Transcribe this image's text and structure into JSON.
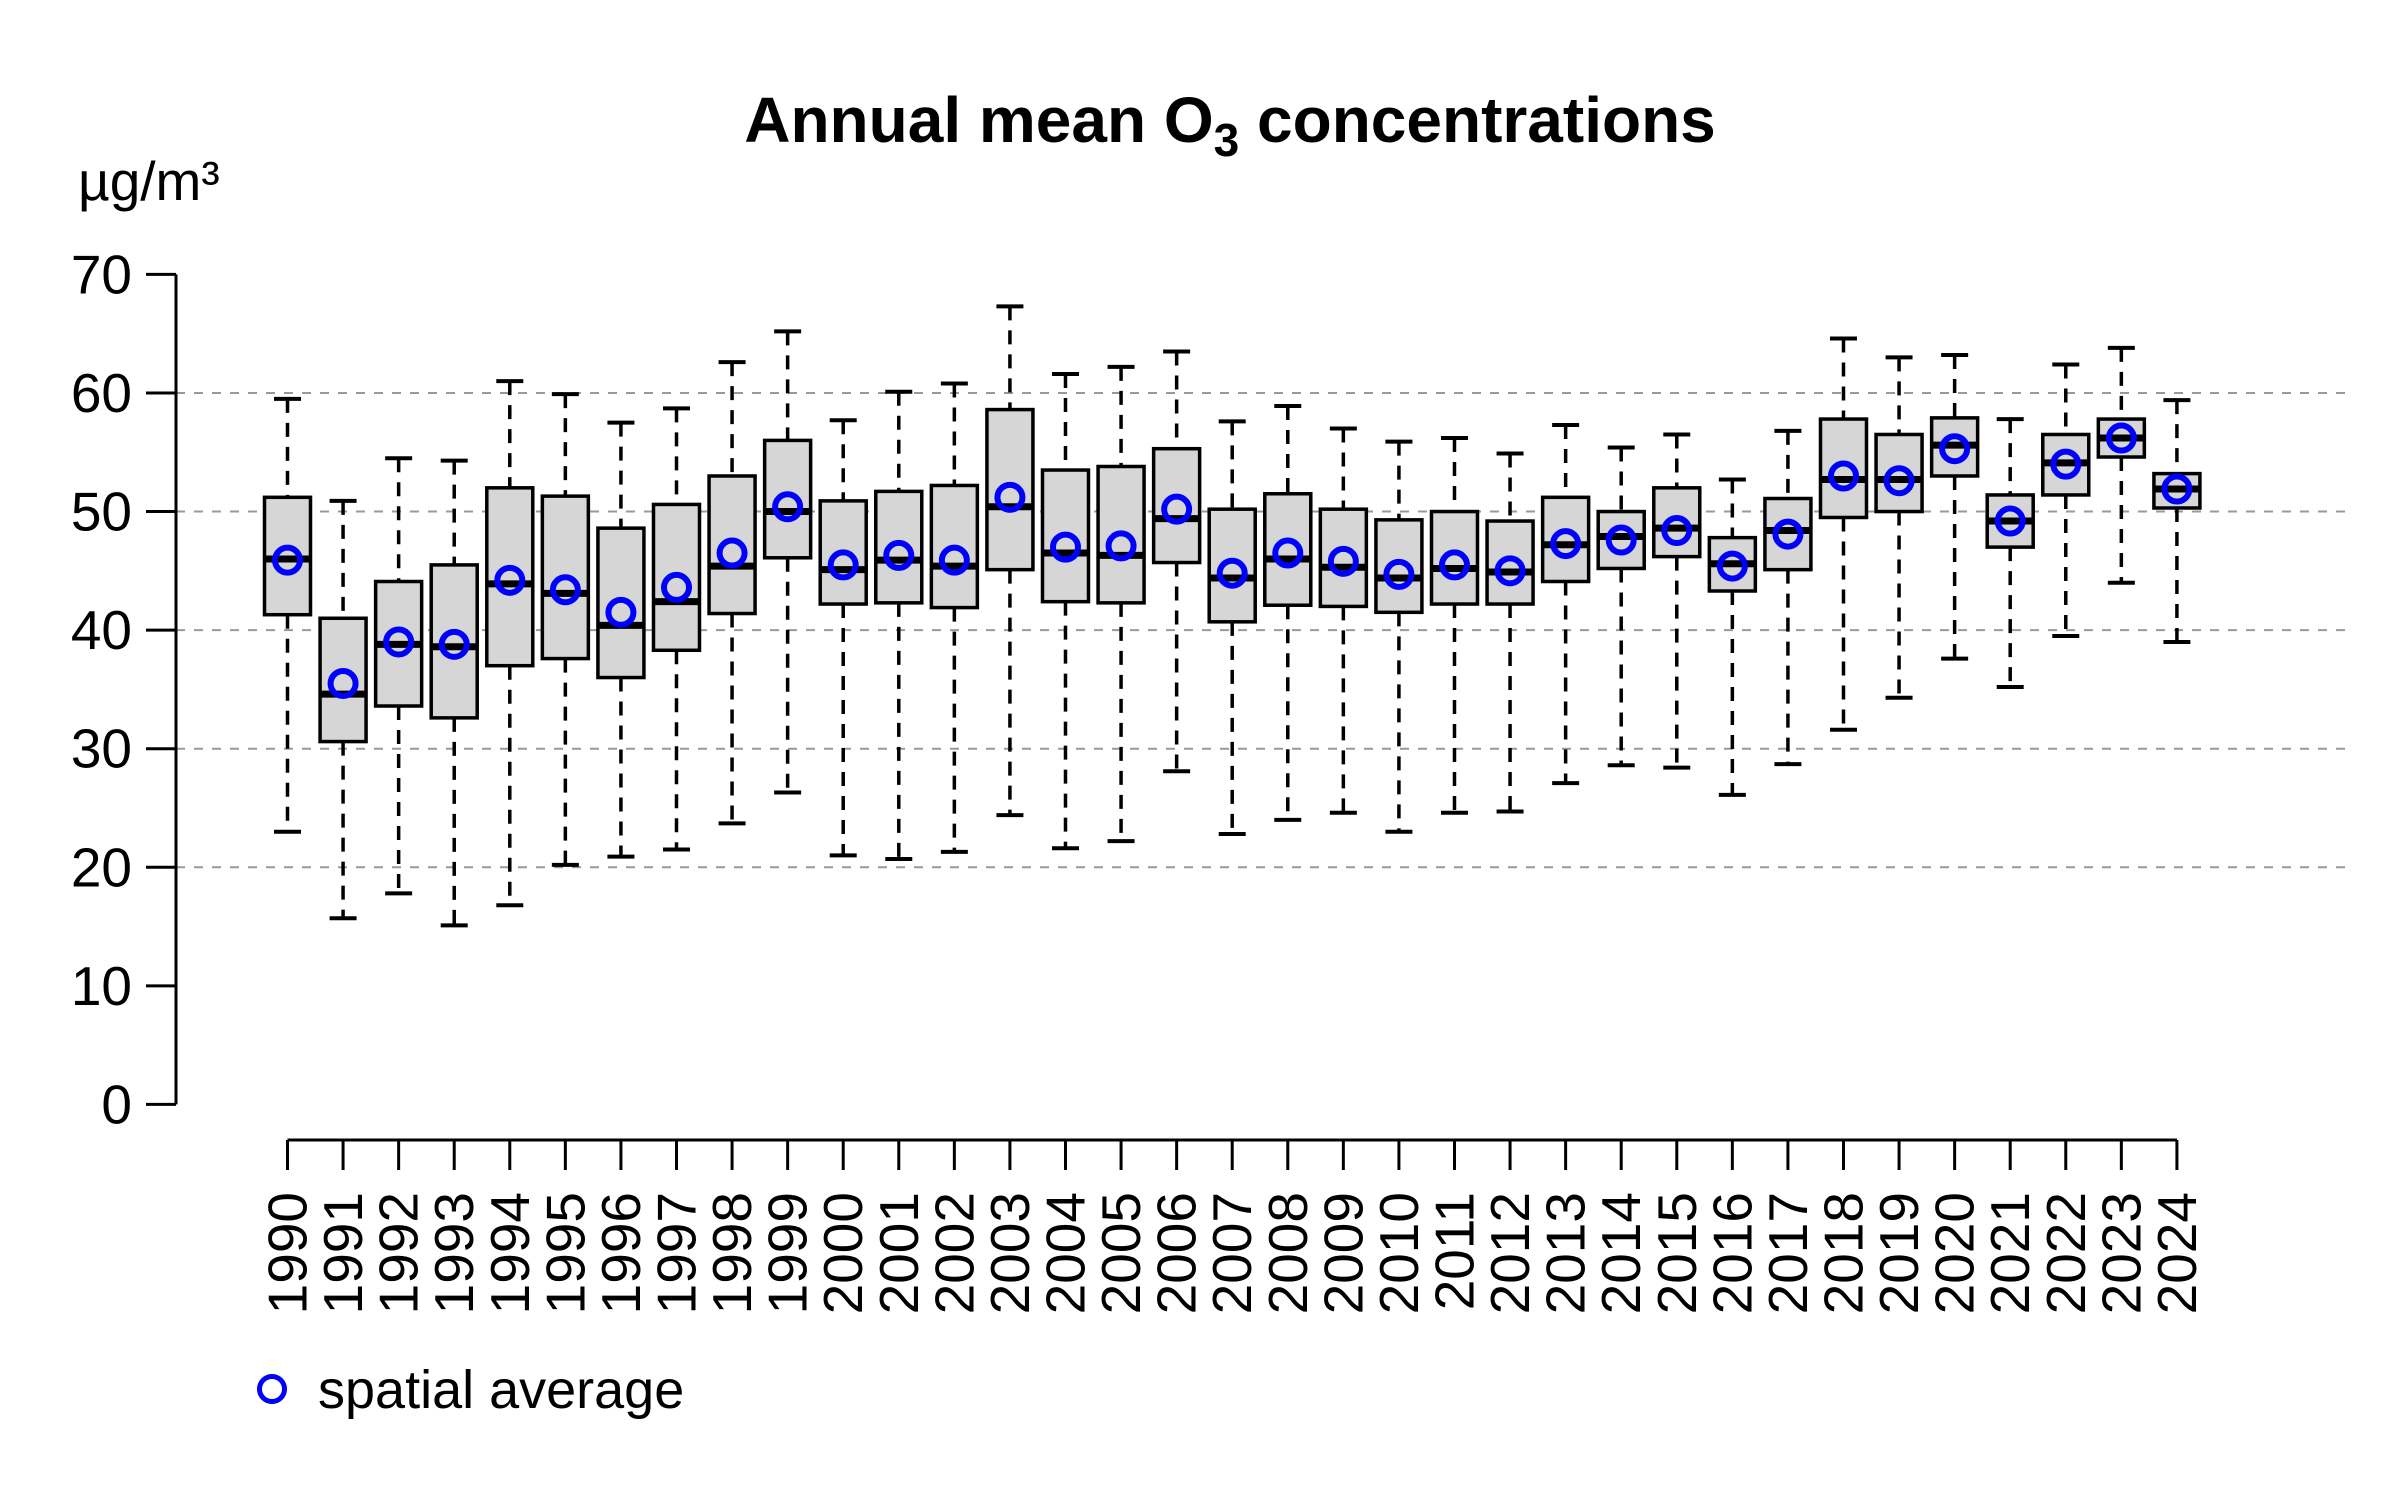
{
  "title": {
    "prefix": "Annual mean O",
    "subscript": "3",
    "suffix": " concentrations"
  },
  "y_axis": {
    "unit_label": "µg/m³",
    "tick_values": [
      0,
      10,
      20,
      30,
      40,
      50,
      60,
      70
    ],
    "tick_labels": [
      "0",
      "10",
      "20",
      "30",
      "40",
      "50",
      "60",
      "70"
    ],
    "gridline_values": [
      20,
      30,
      40,
      50,
      60
    ]
  },
  "legend": {
    "label": "spatial average",
    "marker": "open-circle-icon"
  },
  "colors": {
    "background": "#ffffff",
    "box_fill": "#d6d6d6",
    "box_stroke": "#000000",
    "median": "#000000",
    "whisker": "#000000",
    "average_marker": "#0000ff",
    "gridline": "#999999",
    "text": "#000000"
  },
  "chart_data": {
    "type": "boxplot",
    "title": "Annual mean O3 concentrations",
    "ylabel": "µg/m³",
    "ylim": [
      0,
      70
    ],
    "grid": "horizontal-dashed",
    "gridline_values": [
      20,
      30,
      40,
      50,
      60
    ],
    "legend_position": "bottom-left",
    "legend_entries": [
      "spatial average"
    ],
    "categories": [
      "1990",
      "1991",
      "1992",
      "1993",
      "1994",
      "1995",
      "1996",
      "1997",
      "1998",
      "1999",
      "2000",
      "2001",
      "2002",
      "2003",
      "2004",
      "2005",
      "2006",
      "2007",
      "2008",
      "2009",
      "2010",
      "2011",
      "2012",
      "2013",
      "2014",
      "2015",
      "2016",
      "2017",
      "2018",
      "2019",
      "2020",
      "2021",
      "2022",
      "2023",
      "2024"
    ],
    "boxes": [
      {
        "year": "1990",
        "low": 23.0,
        "q1": 41.3,
        "median": 46.0,
        "q3": 51.2,
        "high": 59.5,
        "average": 45.9
      },
      {
        "year": "1991",
        "low": 15.7,
        "q1": 30.6,
        "median": 34.6,
        "q3": 41.0,
        "high": 50.9,
        "average": 35.5
      },
      {
        "year": "1992",
        "low": 17.8,
        "q1": 33.6,
        "median": 38.8,
        "q3": 44.1,
        "high": 54.5,
        "average": 39.0
      },
      {
        "year": "1993",
        "low": 15.1,
        "q1": 32.6,
        "median": 38.6,
        "q3": 45.5,
        "high": 54.3,
        "average": 38.8
      },
      {
        "year": "1994",
        "low": 16.8,
        "q1": 37.0,
        "median": 43.9,
        "q3": 52.0,
        "high": 61.0,
        "average": 44.2
      },
      {
        "year": "1995",
        "low": 20.2,
        "q1": 37.6,
        "median": 43.1,
        "q3": 51.3,
        "high": 59.9,
        "average": 43.4
      },
      {
        "year": "1996",
        "low": 20.9,
        "q1": 36.0,
        "median": 40.4,
        "q3": 48.6,
        "high": 57.5,
        "average": 41.5
      },
      {
        "year": "1997",
        "low": 21.5,
        "q1": 38.3,
        "median": 42.4,
        "q3": 50.6,
        "high": 58.7,
        "average": 43.6
      },
      {
        "year": "1998",
        "low": 23.7,
        "q1": 41.4,
        "median": 45.4,
        "q3": 53.0,
        "high": 62.6,
        "average": 46.5
      },
      {
        "year": "1999",
        "low": 26.3,
        "q1": 46.1,
        "median": 50.0,
        "q3": 56.0,
        "high": 65.2,
        "average": 50.4
      },
      {
        "year": "2000",
        "low": 21.0,
        "q1": 42.2,
        "median": 45.1,
        "q3": 50.9,
        "high": 57.7,
        "average": 45.5
      },
      {
        "year": "2001",
        "low": 20.7,
        "q1": 42.3,
        "median": 45.9,
        "q3": 51.7,
        "high": 60.1,
        "average": 46.3
      },
      {
        "year": "2002",
        "low": 21.3,
        "q1": 41.9,
        "median": 45.4,
        "q3": 52.2,
        "high": 60.8,
        "average": 45.9
      },
      {
        "year": "2003",
        "low": 24.4,
        "q1": 45.1,
        "median": 50.4,
        "q3": 58.6,
        "high": 67.3,
        "average": 51.2
      },
      {
        "year": "2004",
        "low": 21.6,
        "q1": 42.4,
        "median": 46.5,
        "q3": 53.5,
        "high": 61.6,
        "average": 47.0
      },
      {
        "year": "2005",
        "low": 22.2,
        "q1": 42.3,
        "median": 46.3,
        "q3": 53.8,
        "high": 62.2,
        "average": 47.1
      },
      {
        "year": "2006",
        "low": 28.1,
        "q1": 45.7,
        "median": 49.4,
        "q3": 55.3,
        "high": 63.5,
        "average": 50.2
      },
      {
        "year": "2007",
        "low": 22.8,
        "q1": 40.7,
        "median": 44.4,
        "q3": 50.2,
        "high": 57.6,
        "average": 44.8
      },
      {
        "year": "2008",
        "low": 24.0,
        "q1": 42.1,
        "median": 46.0,
        "q3": 51.5,
        "high": 58.9,
        "average": 46.5
      },
      {
        "year": "2009",
        "low": 24.6,
        "q1": 42.0,
        "median": 45.3,
        "q3": 50.2,
        "high": 57.0,
        "average": 45.8
      },
      {
        "year": "2010",
        "low": 23.0,
        "q1": 41.5,
        "median": 44.4,
        "q3": 49.3,
        "high": 55.9,
        "average": 44.7
      },
      {
        "year": "2011",
        "low": 24.6,
        "q1": 42.2,
        "median": 45.2,
        "q3": 50.0,
        "high": 56.2,
        "average": 45.5
      },
      {
        "year": "2012",
        "low": 24.7,
        "q1": 42.2,
        "median": 44.9,
        "q3": 49.2,
        "high": 54.9,
        "average": 45.0
      },
      {
        "year": "2013",
        "low": 27.1,
        "q1": 44.1,
        "median": 47.2,
        "q3": 51.2,
        "high": 57.3,
        "average": 47.3
      },
      {
        "year": "2014",
        "low": 28.6,
        "q1": 45.2,
        "median": 47.9,
        "q3": 50.0,
        "high": 55.4,
        "average": 47.6
      },
      {
        "year": "2015",
        "low": 28.4,
        "q1": 46.2,
        "median": 48.6,
        "q3": 52.0,
        "high": 56.5,
        "average": 48.4
      },
      {
        "year": "2016",
        "low": 26.1,
        "q1": 43.3,
        "median": 45.6,
        "q3": 47.8,
        "high": 52.7,
        "average": 45.4
      },
      {
        "year": "2017",
        "low": 28.7,
        "q1": 45.1,
        "median": 48.4,
        "q3": 51.1,
        "high": 56.8,
        "average": 48.1
      },
      {
        "year": "2018",
        "low": 31.6,
        "q1": 49.5,
        "median": 52.7,
        "q3": 57.8,
        "high": 64.6,
        "average": 53.0
      },
      {
        "year": "2019",
        "low": 34.3,
        "q1": 50.0,
        "median": 52.7,
        "q3": 56.5,
        "high": 63.0,
        "average": 52.6
      },
      {
        "year": "2020",
        "low": 37.6,
        "q1": 53.0,
        "median": 55.6,
        "q3": 57.9,
        "high": 63.2,
        "average": 55.3
      },
      {
        "year": "2021",
        "low": 35.2,
        "q1": 47.0,
        "median": 49.2,
        "q3": 51.4,
        "high": 57.8,
        "average": 49.2
      },
      {
        "year": "2022",
        "low": 39.5,
        "q1": 51.4,
        "median": 54.1,
        "q3": 56.5,
        "high": 62.4,
        "average": 54.0
      },
      {
        "year": "2023",
        "low": 44.0,
        "q1": 54.6,
        "median": 56.2,
        "q3": 57.8,
        "high": 63.8,
        "average": 56.2
      },
      {
        "year": "2024",
        "low": 39.0,
        "q1": 50.3,
        "median": 51.9,
        "q3": 53.2,
        "high": 59.4,
        "average": 51.9
      }
    ]
  }
}
